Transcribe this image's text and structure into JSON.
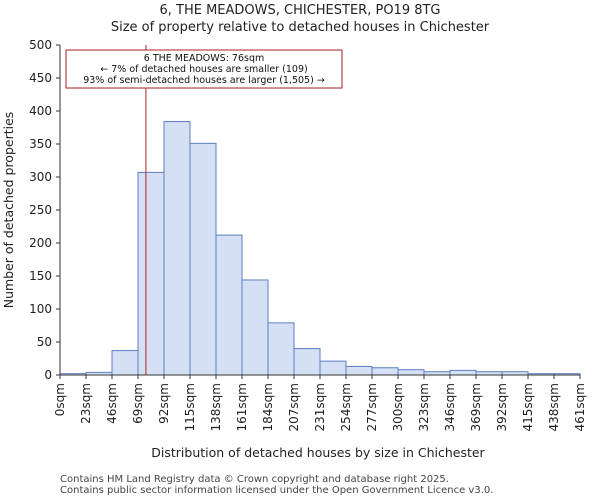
{
  "title_lines": [
    "6, THE MEADOWS, CHICHESTER, PO19 8TG",
    "Size of property relative to detached houses in Chichester"
  ],
  "footer_lines": [
    "Contains HM Land Registry data © Crown copyright and database right 2025.",
    "Contains public sector information licensed under the Open Government Licence v3.0."
  ],
  "colors": {
    "bar_fill": "#d6e0f4",
    "bar_edge": "#5b7fc1",
    "marker": "#aa2222",
    "annot_border": "#aa2222"
  },
  "chart_data": {
    "type": "bar",
    "xlabel": "Distribution of detached houses by size in Chichester",
    "ylabel": "Number of detached properties",
    "ylim": [
      0,
      500
    ],
    "yticks": [
      "0",
      "50",
      "100",
      "150",
      "200",
      "250",
      "300",
      "350",
      "400",
      "450",
      "500"
    ],
    "bin_edges": [
      0,
      23,
      46,
      69,
      92,
      115,
      138,
      161,
      184,
      207,
      231,
      254,
      277,
      300,
      323,
      346,
      369,
      392,
      415,
      438,
      461
    ],
    "bin_labels": [
      "0sqm",
      "23sqm",
      "46sqm",
      "69sqm",
      "92sqm",
      "115sqm",
      "138sqm",
      "161sqm",
      "184sqm",
      "207sqm",
      "231sqm",
      "254sqm",
      "277sqm",
      "300sqm",
      "323sqm",
      "346sqm",
      "369sqm",
      "392sqm",
      "415sqm",
      "438sqm",
      "461sqm"
    ],
    "values": [
      2,
      4,
      37,
      307,
      384,
      351,
      212,
      144,
      79,
      40,
      21,
      13,
      11,
      8,
      5,
      7,
      5,
      5,
      2,
      2
    ],
    "marker_value": 76,
    "annotation": [
      "6 THE MEADOWS: 76sqm",
      "← 7% of detached houses are smaller (109)",
      "93% of semi-detached houses are larger (1,505) →"
    ]
  }
}
